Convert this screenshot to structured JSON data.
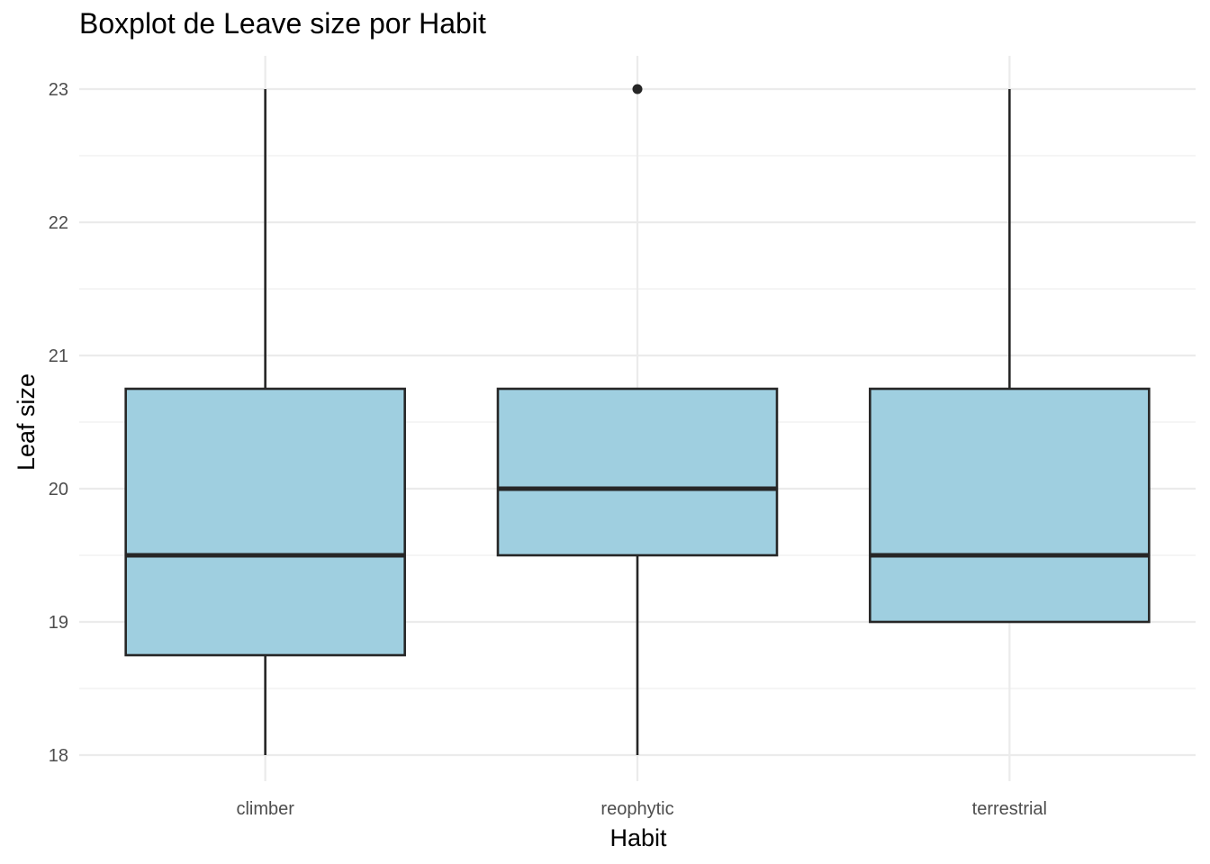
{
  "chart_data": {
    "type": "boxplot",
    "title": "Boxplot de Leave size por Habit",
    "xlabel": "Habit",
    "ylabel": "Leaf size",
    "ylim": [
      17.8,
      23.25
    ],
    "yticks": [
      18,
      19,
      20,
      21,
      22,
      23
    ],
    "yticks_minor": [
      18.5,
      19.5,
      20.5,
      21.5,
      22.5
    ],
    "grid": true,
    "legend": "none",
    "fill_color": "#9fcfe0",
    "line_color": "#262626",
    "grid_color": "#ebebeb",
    "categories": [
      "climber",
      "reophytic",
      "terrestrial"
    ],
    "boxes": [
      {
        "category": "climber",
        "whisker_low": 18,
        "q1": 18.75,
        "median": 19.5,
        "q3": 20.75,
        "whisker_high": 23,
        "outliers": []
      },
      {
        "category": "reophytic",
        "whisker_low": 18,
        "q1": 19.5,
        "median": 20,
        "q3": 20.75,
        "whisker_high": 20.75,
        "outliers": [
          23
        ]
      },
      {
        "category": "terrestrial",
        "whisker_low": 19,
        "q1": 19,
        "median": 19.5,
        "q3": 20.75,
        "whisker_high": 23,
        "outliers": []
      }
    ]
  }
}
